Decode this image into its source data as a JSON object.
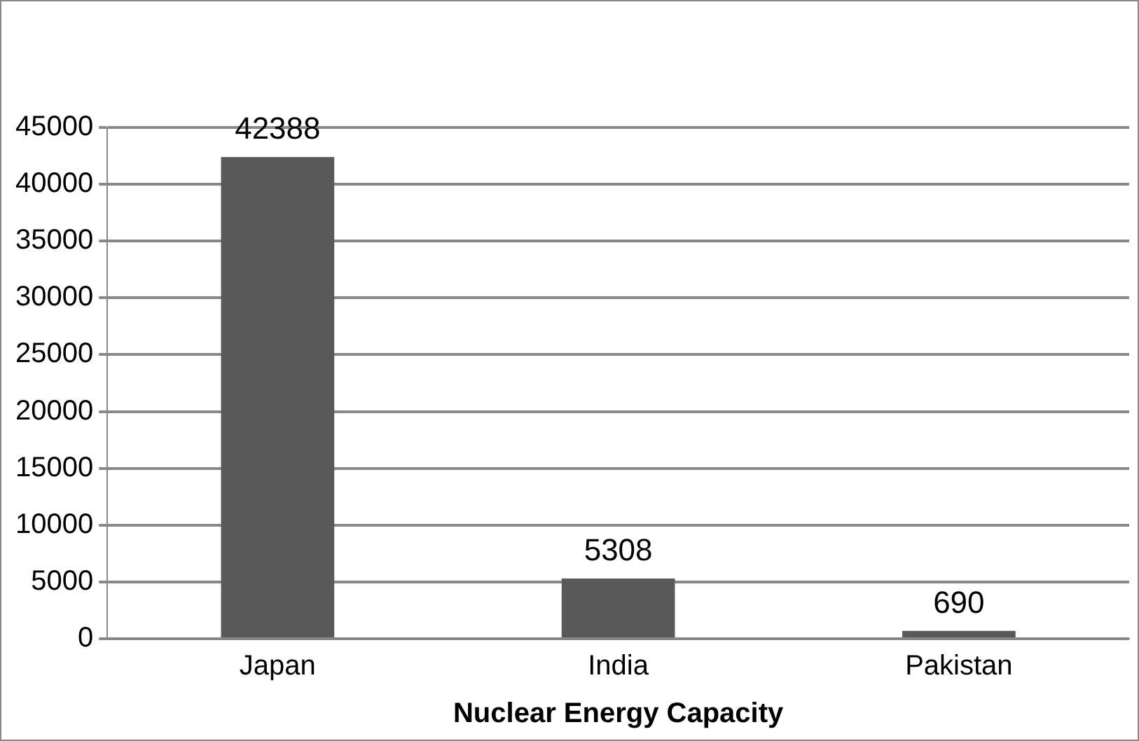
{
  "chart_data": {
    "type": "bar",
    "xlabel": "Nuclear Energy Capacity",
    "categories": [
      "Japan",
      "India",
      "Pakistan"
    ],
    "values": [
      42388,
      5308,
      690
    ],
    "color": "#595959",
    "ylim": [
      0,
      45000
    ],
    "yticks": [
      0,
      5000,
      10000,
      15000,
      20000,
      25000,
      30000,
      35000,
      40000,
      45000
    ],
    "grid": "y",
    "data_labels": true,
    "legend": false
  }
}
